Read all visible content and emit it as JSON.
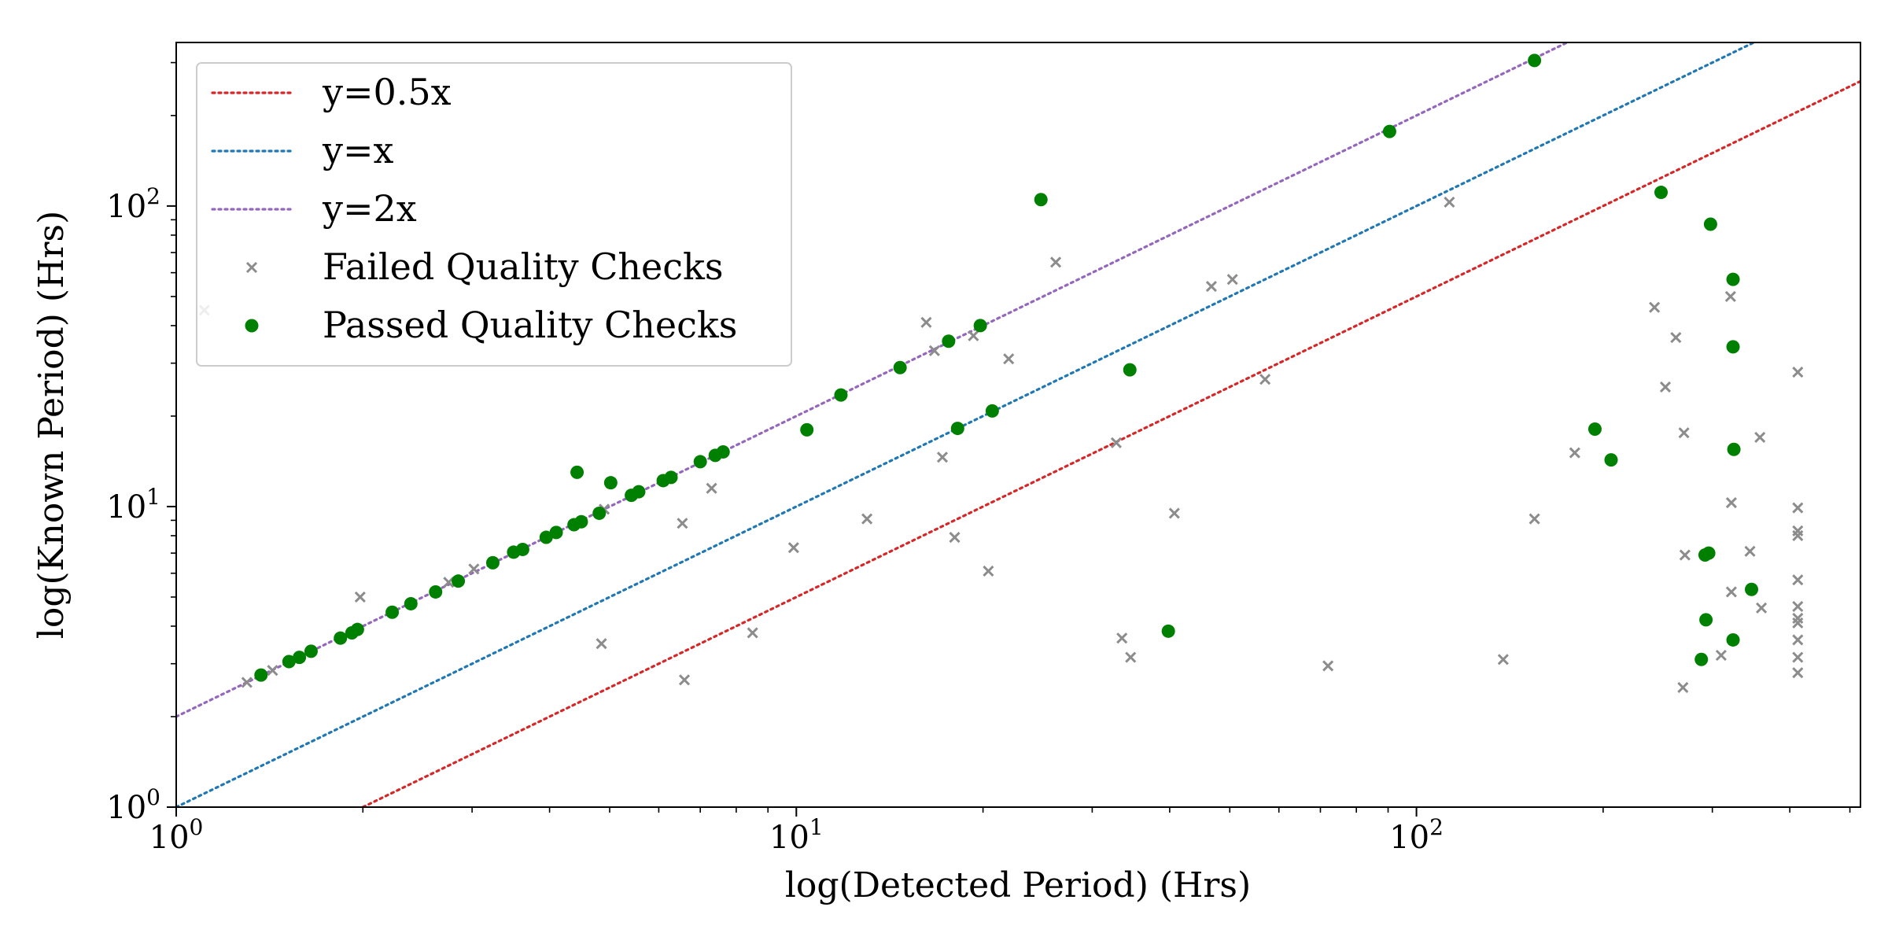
{
  "chart_data": {
    "type": "scatter",
    "xlabel": "log(Detected Period) (Hrs)",
    "ylabel": "log(Known Period) (Hrs)",
    "x_scale": "log",
    "y_scale": "log",
    "xlim": [
      1,
      520
    ],
    "ylim": [
      1,
      350
    ],
    "x_ticks": [
      {
        "value": 1,
        "mantissa": "10",
        "exponent": "0"
      },
      {
        "value": 10,
        "mantissa": "10",
        "exponent": "1"
      },
      {
        "value": 100,
        "mantissa": "10",
        "exponent": "2"
      }
    ],
    "y_ticks": [
      {
        "value": 1,
        "mantissa": "10",
        "exponent": "0"
      },
      {
        "value": 10,
        "mantissa": "10",
        "exponent": "1"
      },
      {
        "value": 100,
        "mantissa": "10",
        "exponent": "2"
      }
    ],
    "grid": false,
    "legend_position": "top-left",
    "reference_lines": [
      {
        "name": "y=0.5x",
        "slope": 0.5,
        "color": "#d62728"
      },
      {
        "name": "y=x",
        "slope": 1,
        "color": "#1f77b4"
      },
      {
        "name": "y=2x",
        "slope": 2,
        "color": "#9467bd"
      }
    ],
    "series": [
      {
        "name": "Failed Quality Checks",
        "marker": "x",
        "color": "#8c8c8c",
        "points": [
          [
            1.11,
            45
          ],
          [
            1.3,
            2.6
          ],
          [
            1.43,
            2.85
          ],
          [
            1.98,
            5.0
          ],
          [
            2.75,
            5.6
          ],
          [
            3.02,
            6.2
          ],
          [
            4.85,
            3.5
          ],
          [
            4.9,
            9.8
          ],
          [
            6.6,
            2.65
          ],
          [
            6.55,
            8.8
          ],
          [
            7.3,
            11.5
          ],
          [
            8.5,
            3.8
          ],
          [
            9.9,
            7.3
          ],
          [
            13.0,
            9.1
          ],
          [
            16.2,
            41
          ],
          [
            16.7,
            33
          ],
          [
            17.2,
            14.6
          ],
          [
            18.0,
            7.9
          ],
          [
            19.3,
            37
          ],
          [
            20.4,
            6.1
          ],
          [
            22.0,
            31
          ],
          [
            26.2,
            65
          ],
          [
            32.8,
            16.3
          ],
          [
            33.5,
            3.65
          ],
          [
            34.6,
            3.15
          ],
          [
            40.7,
            9.5
          ],
          [
            46.7,
            54
          ],
          [
            50.5,
            57
          ],
          [
            57.0,
            26.5
          ],
          [
            72.0,
            2.95
          ],
          [
            113.0,
            103
          ],
          [
            138.0,
            3.1
          ],
          [
            155.0,
            9.1
          ],
          [
            180.0,
            15.1
          ],
          [
            242.0,
            46
          ],
          [
            252.0,
            25
          ],
          [
            262.0,
            36.5
          ],
          [
            269.0,
            2.5
          ],
          [
            271.0,
            6.9
          ],
          [
            270.0,
            17.6
          ],
          [
            310.0,
            3.2
          ],
          [
            321.0,
            50
          ],
          [
            322.0,
            10.3
          ],
          [
            322.0,
            5.2
          ],
          [
            345.0,
            7.1
          ],
          [
            358.0,
            17
          ],
          [
            360.0,
            4.6
          ],
          [
            412.0,
            2.8
          ],
          [
            412.0,
            3.15
          ],
          [
            412.0,
            3.6
          ],
          [
            412.0,
            4.1
          ],
          [
            412.0,
            4.25
          ],
          [
            412.0,
            4.65
          ],
          [
            412.0,
            5.7
          ],
          [
            412.0,
            8.0
          ],
          [
            412.0,
            8.3
          ],
          [
            412.0,
            9.9
          ],
          [
            412.0,
            28
          ]
        ]
      },
      {
        "name": "Passed Quality Checks",
        "marker": "o",
        "color": "#008000",
        "points": [
          [
            1.37,
            2.75
          ],
          [
            1.52,
            3.05
          ],
          [
            1.58,
            3.15
          ],
          [
            1.65,
            3.3
          ],
          [
            1.84,
            3.65
          ],
          [
            1.92,
            3.8
          ],
          [
            1.96,
            3.9
          ],
          [
            2.23,
            4.45
          ],
          [
            2.39,
            4.75
          ],
          [
            2.62,
            5.2
          ],
          [
            2.85,
            5.65
          ],
          [
            3.24,
            6.5
          ],
          [
            3.5,
            7.05
          ],
          [
            3.62,
            7.2
          ],
          [
            3.95,
            7.9
          ],
          [
            4.1,
            8.2
          ],
          [
            4.38,
            8.7
          ],
          [
            4.43,
            13
          ],
          [
            4.5,
            8.9
          ],
          [
            4.81,
            9.5
          ],
          [
            5.02,
            12
          ],
          [
            5.42,
            10.9
          ],
          [
            5.57,
            11.2
          ],
          [
            6.1,
            12.2
          ],
          [
            6.28,
            12.5
          ],
          [
            7.0,
            14.1
          ],
          [
            7.4,
            14.8
          ],
          [
            7.62,
            15.2
          ],
          [
            10.4,
            18
          ],
          [
            11.8,
            23.5
          ],
          [
            14.7,
            29
          ],
          [
            17.6,
            35.5
          ],
          [
            18.2,
            18.2
          ],
          [
            19.8,
            40
          ],
          [
            20.7,
            20.8
          ],
          [
            24.8,
            105
          ],
          [
            34.5,
            28.5
          ],
          [
            39.8,
            3.85
          ],
          [
            90.5,
            177
          ],
          [
            155.0,
            305
          ],
          [
            194.0,
            18.1
          ],
          [
            206.0,
            14.3
          ],
          [
            248.0,
            111
          ],
          [
            288.0,
            3.1
          ],
          [
            292.0,
            6.9
          ],
          [
            296.0,
            7.0
          ],
          [
            298.0,
            87
          ],
          [
            293.0,
            4.2
          ],
          [
            324.0,
            57
          ],
          [
            324.0,
            34
          ],
          [
            325.0,
            15.5
          ],
          [
            324.0,
            3.6
          ],
          [
            347.0,
            5.3
          ]
        ]
      }
    ]
  }
}
